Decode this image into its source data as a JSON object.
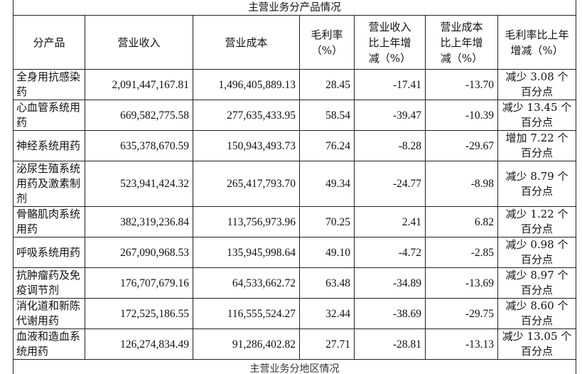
{
  "table_title": "主营业务分产品情况",
  "headers": {
    "product": "分产品",
    "revenue": "营业收入",
    "cost": "营业成本",
    "margin": [
      "毛利率",
      "（%）"
    ],
    "rev_change": [
      "营业收入",
      "比上年增",
      "减（%）"
    ],
    "cost_change": [
      "营业成本",
      "比上年增",
      "减（%）"
    ],
    "margin_change": [
      "毛利率比上年",
      "增减（%）"
    ]
  },
  "rows": [
    {
      "product": "全身用抗感染药",
      "revenue": "2,091,447,167.81",
      "cost": "1,496,405,889.13",
      "margin": "28.45",
      "rev_change": "-17.41",
      "cost_change": "-13.70",
      "margin_change": "减少 3.08 个百分点"
    },
    {
      "product": "心血管系统用药",
      "revenue": "669,582,775.58",
      "cost": "277,635,433.95",
      "margin": "58.54",
      "rev_change": "-39.47",
      "cost_change": "-10.39",
      "margin_change": "减少 13.45 个百分点"
    },
    {
      "product": "神经系统用药",
      "revenue": "635,378,670.59",
      "cost": "150,943,493.73",
      "margin": "76.24",
      "rev_change": "-8.28",
      "cost_change": "-29.67",
      "margin_change": "增加 7.22 个百分点"
    },
    {
      "product": "泌尿生殖系统用药及激素制剂",
      "revenue": "523,941,424.32",
      "cost": "265,417,793.70",
      "margin": "49.34",
      "rev_change": "-24.77",
      "cost_change": "-8.98",
      "margin_change": "减少 8.79 个百分点"
    },
    {
      "product": "骨骼肌肉系统用药",
      "revenue": "382,319,236.84",
      "cost": "113,756,973.96",
      "margin": "70.25",
      "rev_change": "2.41",
      "cost_change": "6.82",
      "margin_change": "减少 1.22 个百分点"
    },
    {
      "product": "呼吸系统用药",
      "revenue": "267,090,968.53",
      "cost": "135,945,998.64",
      "margin": "49.10",
      "rev_change": "-4.72",
      "cost_change": "-2.85",
      "margin_change": "减少 0.98 个百分点"
    },
    {
      "product": "抗肿瘤药及免疫调节剂",
      "revenue": "176,707,679.16",
      "cost": "64,533,662.72",
      "margin": "63.48",
      "rev_change": "-34.89",
      "cost_change": "-13.69",
      "margin_change": "减少 8.97 个百分点"
    },
    {
      "product": "消化道和新陈代谢用药",
      "revenue": "172,525,186.55",
      "cost": "116,555,524.27",
      "margin": "32.44",
      "rev_change": "-38.69",
      "cost_change": "-29.75",
      "margin_change": "减少 8.60 个百分点"
    },
    {
      "product": "血液和造血系统用药",
      "revenue": "126,274,834.49",
      "cost": "91,286,402.82",
      "margin": "27.71",
      "rev_change": "-28.81",
      "cost_change": "-13.13",
      "margin_change": "减少 13.05 个百分点"
    }
  ],
  "cut_off_text": "主营业务分地区情况"
}
